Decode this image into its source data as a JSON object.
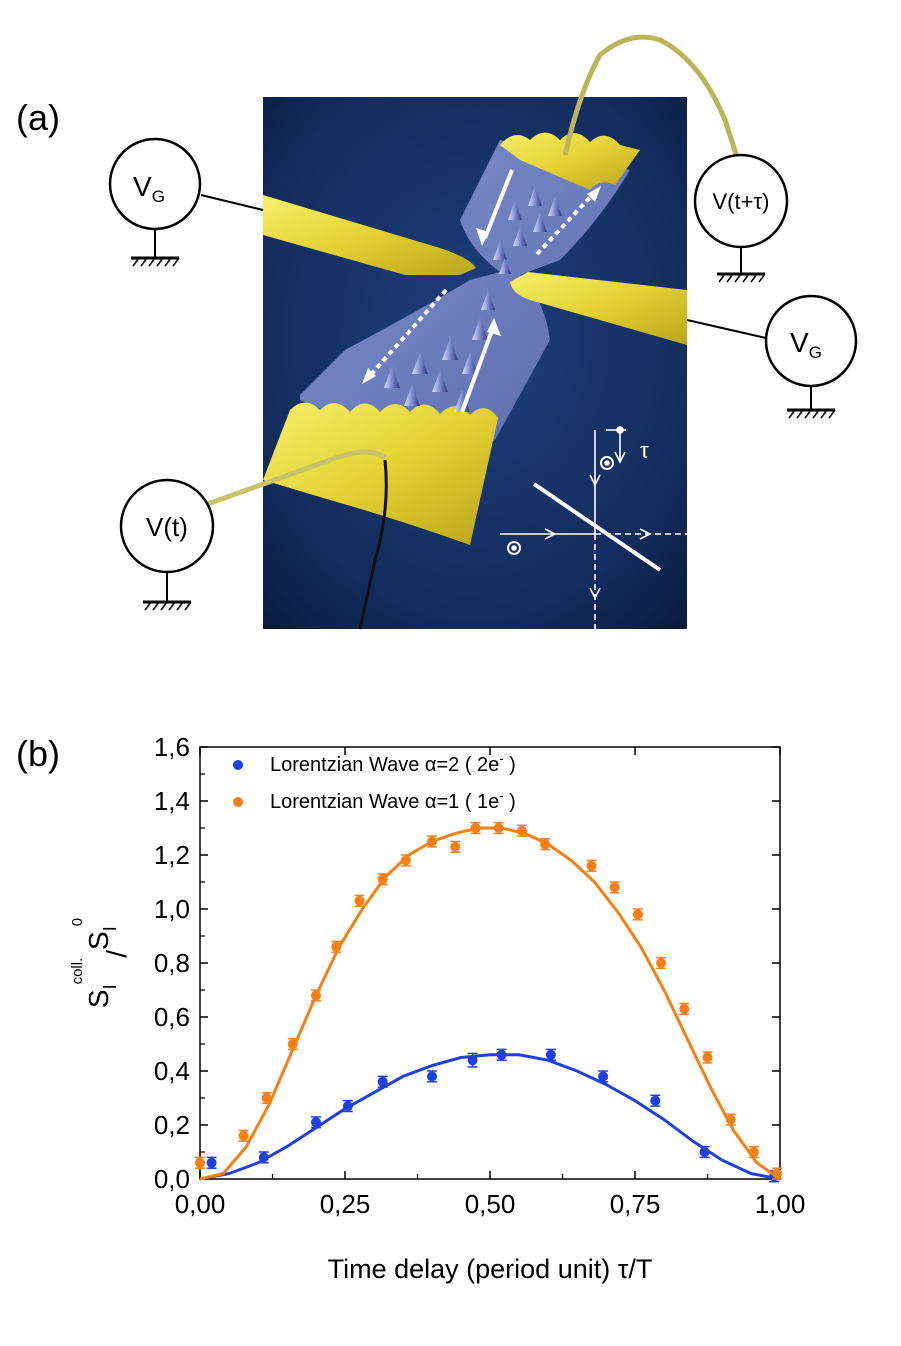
{
  "panel_a": {
    "label": "(a)",
    "sources": {
      "gate_left": {
        "main": "V",
        "sub": "G"
      },
      "gate_right": {
        "main": "V",
        "sub": "G"
      },
      "input_bottom": "V(t)",
      "input_top": "V(t+τ)"
    },
    "inset_tau": "τ"
  },
  "panel_b": {
    "label": "(b)"
  },
  "chart_data": {
    "type": "scatter",
    "xlabel": "Time delay (period unit) τ/T",
    "ylabel": {
      "base": "S",
      "sub": "I",
      "sup": "coll.",
      "slash": "/",
      "base2": "S",
      "sub2": "I",
      "sup2": "0"
    },
    "xlim": [
      0,
      1
    ],
    "ylim": [
      0,
      1.6
    ],
    "xticks": [
      "0,00",
      "0,25",
      "0,50",
      "0,75",
      "1,00"
    ],
    "xtick_values": [
      0,
      0.25,
      0.5,
      0.75,
      1.0
    ],
    "yticks": [
      "0,0",
      "0,2",
      "0,4",
      "0,6",
      "0,8",
      "1,0",
      "1,2",
      "1,4",
      "1,6"
    ],
    "ytick_values": [
      0,
      0.2,
      0.4,
      0.6,
      0.8,
      1.0,
      1.2,
      1.4,
      1.6
    ],
    "legend": {
      "placement": "top-left",
      "entries": [
        {
          "text": "Lorentzian Wave α=2 ( 2e",
          "sup": "-",
          "close": " )",
          "color": "#1f3fe0"
        },
        {
          "text": "Lorentzian Wave α=1  ( 1e",
          "sup": "-",
          "close": " )",
          "color": "#f57f17"
        }
      ]
    },
    "series": [
      {
        "color": "#1f3fe0",
        "points": [
          {
            "x": 0.02,
            "y": 0.06,
            "err": 0.02
          },
          {
            "x": 0.11,
            "y": 0.08,
            "err": 0.02
          },
          {
            "x": 0.2,
            "y": 0.21,
            "err": 0.02
          },
          {
            "x": 0.255,
            "y": 0.27,
            "err": 0.02
          },
          {
            "x": 0.315,
            "y": 0.36,
            "err": 0.02
          },
          {
            "x": 0.4,
            "y": 0.38,
            "err": 0.02
          },
          {
            "x": 0.47,
            "y": 0.44,
            "err": 0.025
          },
          {
            "x": 0.52,
            "y": 0.46,
            "err": 0.02
          },
          {
            "x": 0.605,
            "y": 0.46,
            "err": 0.02
          },
          {
            "x": 0.695,
            "y": 0.38,
            "err": 0.02
          },
          {
            "x": 0.785,
            "y": 0.29,
            "err": 0.02
          },
          {
            "x": 0.87,
            "y": 0.1,
            "err": 0.02
          },
          {
            "x": 0.99,
            "y": 0.01,
            "err": 0.02
          }
        ],
        "fit": [
          [
            0,
            0
          ],
          [
            0.05,
            0.02
          ],
          [
            0.1,
            0.06
          ],
          [
            0.15,
            0.12
          ],
          [
            0.2,
            0.19
          ],
          [
            0.25,
            0.26
          ],
          [
            0.3,
            0.32
          ],
          [
            0.35,
            0.38
          ],
          [
            0.4,
            0.42
          ],
          [
            0.45,
            0.45
          ],
          [
            0.5,
            0.46
          ],
          [
            0.55,
            0.46
          ],
          [
            0.6,
            0.44
          ],
          [
            0.65,
            0.4
          ],
          [
            0.7,
            0.35
          ],
          [
            0.75,
            0.29
          ],
          [
            0.8,
            0.22
          ],
          [
            0.85,
            0.14
          ],
          [
            0.9,
            0.07
          ],
          [
            0.95,
            0.02
          ],
          [
            1.0,
            0.0
          ]
        ]
      },
      {
        "color": "#f57f17",
        "points": [
          {
            "x": 0.0,
            "y": 0.06,
            "err": 0.02
          },
          {
            "x": 0.075,
            "y": 0.16,
            "err": 0.02
          },
          {
            "x": 0.115,
            "y": 0.3,
            "err": 0.02
          },
          {
            "x": 0.16,
            "y": 0.5,
            "err": 0.02
          },
          {
            "x": 0.2,
            "y": 0.68,
            "err": 0.02
          },
          {
            "x": 0.235,
            "y": 0.86,
            "err": 0.02
          },
          {
            "x": 0.275,
            "y": 1.03,
            "err": 0.02
          },
          {
            "x": 0.315,
            "y": 1.11,
            "err": 0.02
          },
          {
            "x": 0.355,
            "y": 1.18,
            "err": 0.02
          },
          {
            "x": 0.4,
            "y": 1.25,
            "err": 0.02
          },
          {
            "x": 0.44,
            "y": 1.23,
            "err": 0.02
          },
          {
            "x": 0.475,
            "y": 1.3,
            "err": 0.02
          },
          {
            "x": 0.515,
            "y": 1.3,
            "err": 0.02
          },
          {
            "x": 0.555,
            "y": 1.29,
            "err": 0.02
          },
          {
            "x": 0.595,
            "y": 1.24,
            "err": 0.02
          },
          {
            "x": 0.675,
            "y": 1.16,
            "err": 0.02
          },
          {
            "x": 0.715,
            "y": 1.08,
            "err": 0.02
          },
          {
            "x": 0.755,
            "y": 0.98,
            "err": 0.02
          },
          {
            "x": 0.795,
            "y": 0.8,
            "err": 0.02
          },
          {
            "x": 0.835,
            "y": 0.63,
            "err": 0.02
          },
          {
            "x": 0.875,
            "y": 0.45,
            "err": 0.02
          },
          {
            "x": 0.915,
            "y": 0.22,
            "err": 0.02
          },
          {
            "x": 0.955,
            "y": 0.1,
            "err": 0.02
          },
          {
            "x": 0.995,
            "y": 0.02,
            "err": 0.02
          }
        ],
        "fit": [
          [
            0,
            0
          ],
          [
            0.04,
            0.02
          ],
          [
            0.08,
            0.12
          ],
          [
            0.12,
            0.28
          ],
          [
            0.16,
            0.48
          ],
          [
            0.2,
            0.68
          ],
          [
            0.24,
            0.86
          ],
          [
            0.28,
            1.0
          ],
          [
            0.32,
            1.12
          ],
          [
            0.36,
            1.2
          ],
          [
            0.4,
            1.25
          ],
          [
            0.44,
            1.28
          ],
          [
            0.48,
            1.3
          ],
          [
            0.52,
            1.3
          ],
          [
            0.56,
            1.28
          ],
          [
            0.6,
            1.24
          ],
          [
            0.64,
            1.18
          ],
          [
            0.68,
            1.1
          ],
          [
            0.72,
            0.99
          ],
          [
            0.76,
            0.86
          ],
          [
            0.8,
            0.7
          ],
          [
            0.84,
            0.52
          ],
          [
            0.88,
            0.34
          ],
          [
            0.92,
            0.18
          ],
          [
            0.96,
            0.06
          ],
          [
            1.0,
            0.0
          ]
        ]
      }
    ]
  }
}
